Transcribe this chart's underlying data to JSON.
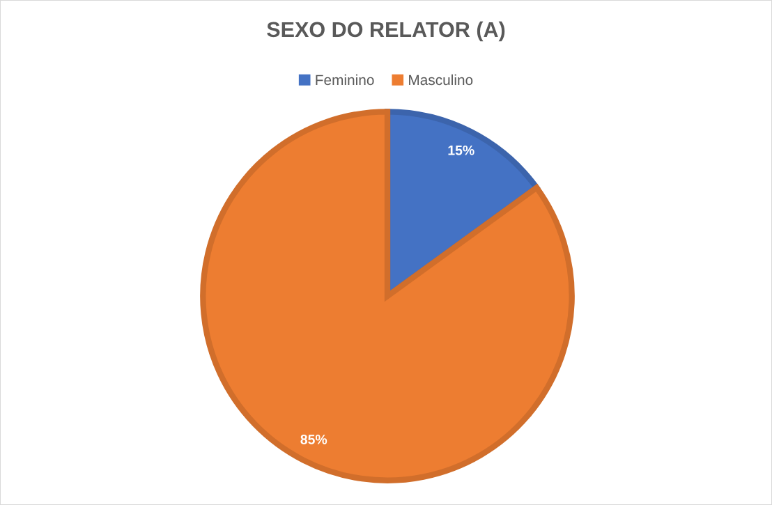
{
  "chart_data": {
    "type": "pie",
    "title": "SEXO DO RELATOR (A)",
    "categories": [
      "Feminino",
      "Masculino"
    ],
    "values": [
      15,
      85
    ],
    "colors": [
      "#4472c4",
      "#ed7d31"
    ],
    "value_labels": [
      "15%",
      "85%"
    ],
    "legend": "top"
  }
}
